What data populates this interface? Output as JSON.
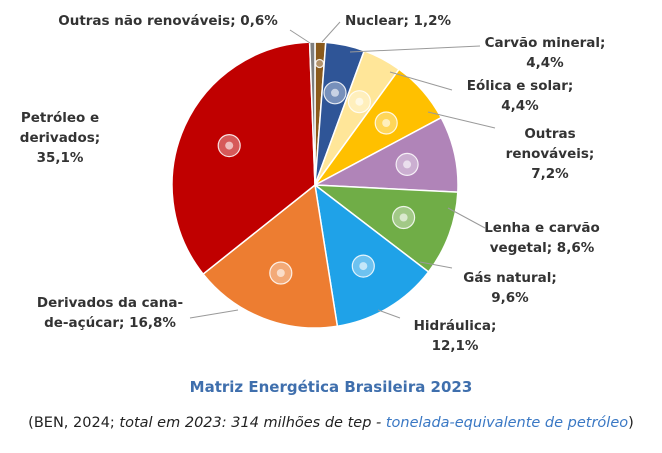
{
  "chart_data": {
    "type": "pie",
    "title": "Matriz Energética Brasileira 2023",
    "source": {
      "open_paren": "(",
      "ben": "BEN, 2024; ",
      "total": "total em 2023: 314 milhões de tep - ",
      "unit_link": "tonelada-equivalente de petróleo",
      "close_paren": ")"
    },
    "slices": [
      {
        "name": "Nuclear",
        "value": 1.2,
        "color": "#8a5a1c",
        "icon": "atom-icon",
        "label": [
          "Nuclear; 1,2%"
        ]
      },
      {
        "name": "Carvão mineral",
        "value": 4.4,
        "color": "#2f5597",
        "icon": "coal-icon",
        "label": [
          "Carvão mineral;",
          "4,4%"
        ]
      },
      {
        "name": "Eólica e solar",
        "value": 4.4,
        "color": "#ffe699",
        "icon": "wind-sun-icon",
        "label": [
          "Eólica e solar;",
          "4,4%"
        ]
      },
      {
        "name": "Outras renováveis",
        "value": 7.2,
        "color": "#ffc000",
        "icon": "sun-icon",
        "label": [
          "Outras",
          "renováveis;",
          "7,2%"
        ]
      },
      {
        "name": "Lenha e carvão vegetal",
        "value": 8.6,
        "color": "#b084b8",
        "icon": "firewood-icon",
        "label": [
          "Lenha e carvão",
          "vegetal; 8,6%"
        ]
      },
      {
        "name": "Gás natural",
        "value": 9.6,
        "color": "#70ad47",
        "icon": "flame-icon",
        "label": [
          "Gás natural;",
          "9,6%"
        ]
      },
      {
        "name": "Hidráulica",
        "value": 12.1,
        "color": "#1fa2e8",
        "icon": "water-drop-icon",
        "label": [
          "Hidráulica;",
          "12,1%"
        ]
      },
      {
        "name": "Derivados da cana-de-açúcar",
        "value": 16.8,
        "color": "#ed7d31",
        "icon": "sugarcane-icon",
        "label": [
          "Derivados da cana-",
          "de-açúcar; 16,8%"
        ]
      },
      {
        "name": "Petróleo e derivados",
        "value": 35.1,
        "color": "#c00000",
        "icon": "oil-barrel-icon",
        "label": [
          "Petróleo e",
          "derivados;",
          "35,1%"
        ]
      },
      {
        "name": "Outras não renováveis",
        "value": 0.6,
        "color": "#7f7f7f",
        "icon": "",
        "label": [
          "Outras não renováveis; 0,6%"
        ]
      }
    ]
  }
}
